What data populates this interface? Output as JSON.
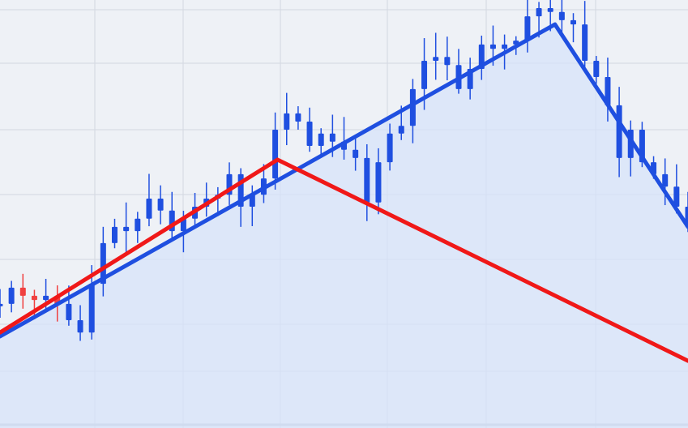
{
  "chart_data": {
    "type": "line",
    "title": "",
    "xlabel": "",
    "ylabel": "",
    "xlim": [
      0,
      60
    ],
    "ylim": [
      0,
      100
    ],
    "grid": true,
    "legend": "none",
    "candles": {
      "color": "#1f4fe0",
      "down_color": "#f04040",
      "values": [
        29.0,
        32.8,
        30.9,
        29.9,
        30.9,
        29.0,
        25.2,
        22.3,
        33.7,
        43.2,
        47.0,
        46.0,
        48.9,
        53.6,
        50.8,
        46.0,
        48.9,
        51.7,
        53.6,
        54.5,
        59.3,
        51.7,
        54.5,
        58.3,
        69.7,
        73.5,
        71.6,
        65.9,
        68.8,
        66.9,
        65.0,
        63.1,
        52.7,
        62.1,
        68.8,
        70.6,
        79.2,
        85.8,
        86.7,
        84.8,
        79.2,
        83.9,
        89.6,
        88.6,
        89.6,
        90.5,
        96.2,
        98.1,
        97.2,
        95.3,
        94.3,
        85.8,
        82.0,
        75.4,
        63.1,
        69.7,
        62.1,
        59.3,
        56.4,
        51.7,
        47.0
      ]
    },
    "series": [
      {
        "color": "#1f4fe0",
        "x": [
          0,
          48.4,
          60
        ],
        "y": [
          21.4,
          94.3,
          47.0
        ],
        "fill": "#d6e2fb"
      },
      {
        "color": "#f01818",
        "x": [
          0,
          24.2,
          60
        ],
        "y": [
          22.3,
          62.7,
          15.7
        ]
      }
    ]
  }
}
